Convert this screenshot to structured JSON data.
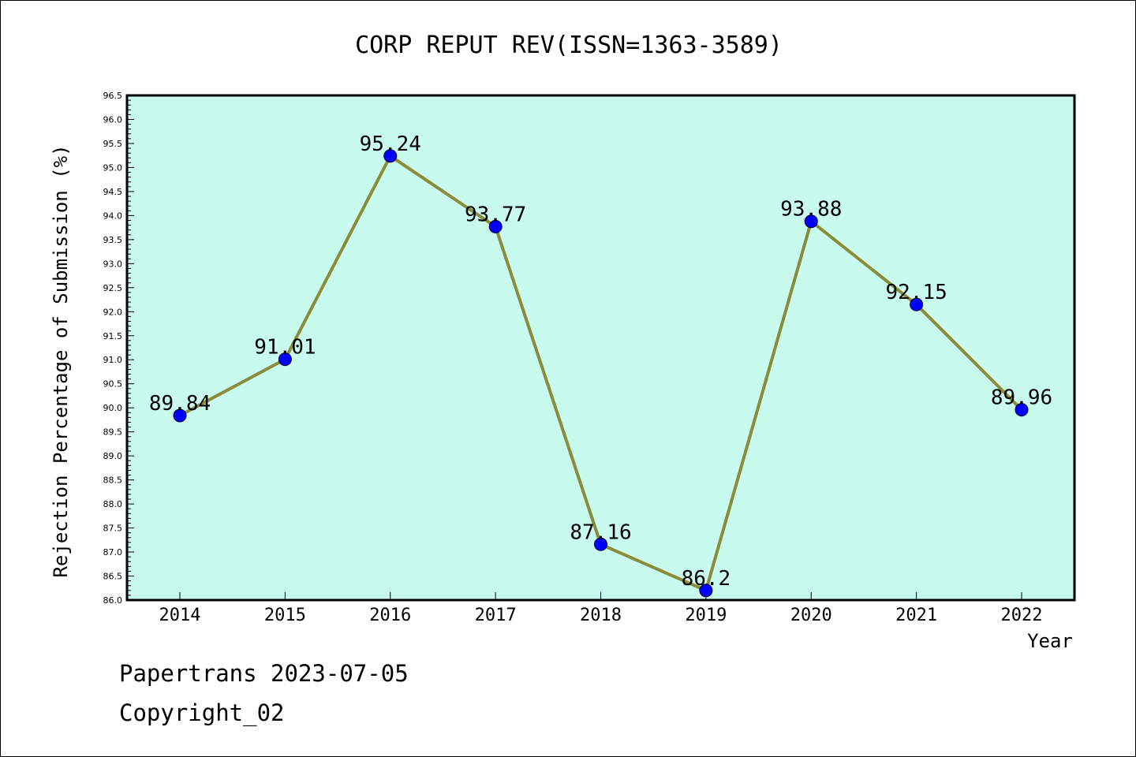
{
  "colors": {
    "plot_background": "#c8fbee",
    "line": "#8b8b3a",
    "marker": "#0000ff"
  },
  "footer": {
    "line1": "Papertrans 2023-07-05",
    "line2": "Copyright_02"
  },
  "chart_data": {
    "type": "line",
    "title": "CORP REPUT REV(ISSN=1363-3589)",
    "xlabel": "Year",
    "ylabel": "Rejection Percentage of Submission (%)",
    "categories": [
      "2014",
      "2015",
      "2016",
      "2017",
      "2018",
      "2019",
      "2020",
      "2021",
      "2022"
    ],
    "series": [
      {
        "values": [
          89.84,
          91.01,
          95.24,
          93.77,
          87.16,
          86.2,
          93.88,
          92.15,
          89.96
        ],
        "labels": [
          "89.84",
          "91.01",
          "95.24",
          "93.77",
          "87.16",
          "86.2",
          "93.88",
          "92.15",
          "89.96"
        ]
      }
    ],
    "ylim": [
      86.0,
      96.5
    ],
    "ytick_step": 0.5,
    "grid": false,
    "legend": false
  }
}
